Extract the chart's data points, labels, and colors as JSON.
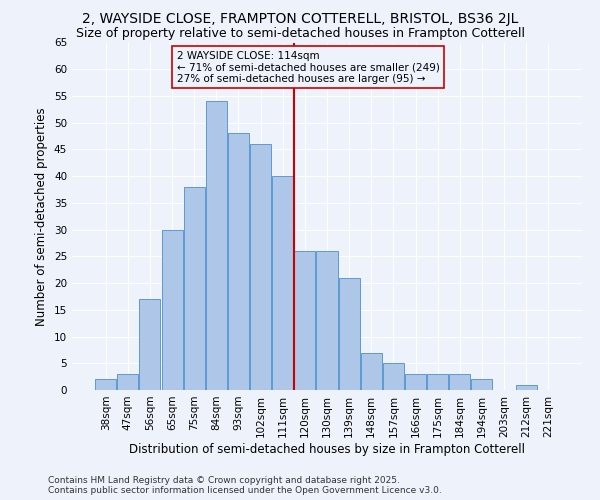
{
  "title1": "2, WAYSIDE CLOSE, FRAMPTON COTTERELL, BRISTOL, BS36 2JL",
  "title2": "Size of property relative to semi-detached houses in Frampton Cotterell",
  "xlabel": "Distribution of semi-detached houses by size in Frampton Cotterell",
  "ylabel": "Number of semi-detached properties",
  "footnote1": "Contains HM Land Registry data © Crown copyright and database right 2025.",
  "footnote2": "Contains public sector information licensed under the Open Government Licence v3.0.",
  "categories": [
    "38sqm",
    "47sqm",
    "56sqm",
    "65sqm",
    "75sqm",
    "84sqm",
    "93sqm",
    "102sqm",
    "111sqm",
    "120sqm",
    "130sqm",
    "139sqm",
    "148sqm",
    "157sqm",
    "166sqm",
    "175sqm",
    "184sqm",
    "194sqm",
    "203sqm",
    "212sqm",
    "221sqm"
  ],
  "values": [
    2,
    3,
    17,
    30,
    38,
    54,
    48,
    46,
    40,
    26,
    26,
    21,
    7,
    5,
    3,
    3,
    3,
    2,
    0,
    1,
    0
  ],
  "bar_color": "#aec6e8",
  "bar_edge_color": "#5b9bd5",
  "vline_index": 8,
  "vline_color": "#cc0000",
  "annotation_title": "2 WAYSIDE CLOSE: 114sqm",
  "annotation_line1": "← 71% of semi-detached houses are smaller (249)",
  "annotation_line2": "27% of semi-detached houses are larger (95) →",
  "annotation_box_color": "#cc0000",
  "ylim": [
    0,
    65
  ],
  "yticks": [
    0,
    5,
    10,
    15,
    20,
    25,
    30,
    35,
    40,
    45,
    50,
    55,
    60,
    65
  ],
  "bg_color": "#eef2fb",
  "grid_color": "#ffffff",
  "title1_fontsize": 10,
  "title2_fontsize": 9,
  "xlabel_fontsize": 8.5,
  "ylabel_fontsize": 8.5,
  "tick_fontsize": 7.5,
  "annot_fontsize": 7.5,
  "footnote_fontsize": 6.5
}
